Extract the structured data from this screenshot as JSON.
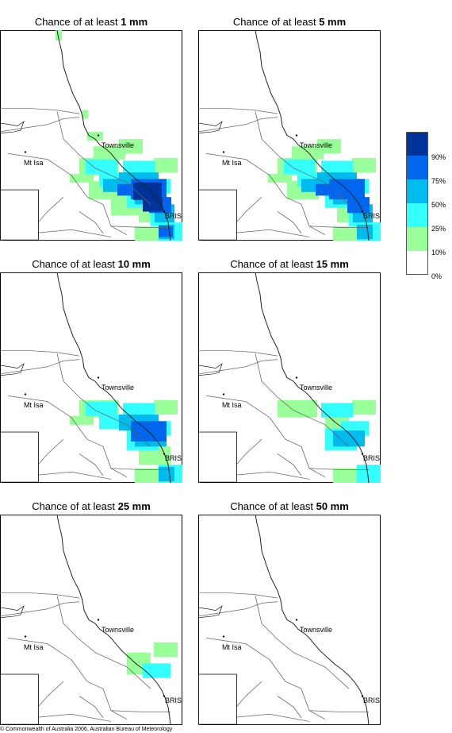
{
  "panels": [
    {
      "prefix": "Chance of at least",
      "amount": "1 mm",
      "intensity": 1.0
    },
    {
      "prefix": "Chance of at least",
      "amount": "5 mm",
      "intensity": 0.75
    },
    {
      "prefix": "Chance of at least",
      "amount": "10 mm",
      "intensity": 0.55
    },
    {
      "prefix": "Chance of at least",
      "amount": "15 mm",
      "intensity": 0.42
    },
    {
      "prefix": "Chance of at least",
      "amount": "25 mm",
      "intensity": 0.25
    },
    {
      "prefix": "Chance of at least",
      "amount": "50 mm",
      "intensity": 0.0
    }
  ],
  "places": {
    "townsville": "Townsville",
    "mt_isa": "Mt Isa",
    "brisbane": "BRIS"
  },
  "legend": {
    "colors": [
      "#003399",
      "#0066ee",
      "#00bbee",
      "#33ffff",
      "#99ff99",
      "#ffffff"
    ],
    "ticks": [
      "90%",
      "75%",
      "50%",
      "25%",
      "10%",
      "0%"
    ]
  },
  "copyright": "© Commonwealth of Australia 2006, Australian Bureau of Meteorology"
}
